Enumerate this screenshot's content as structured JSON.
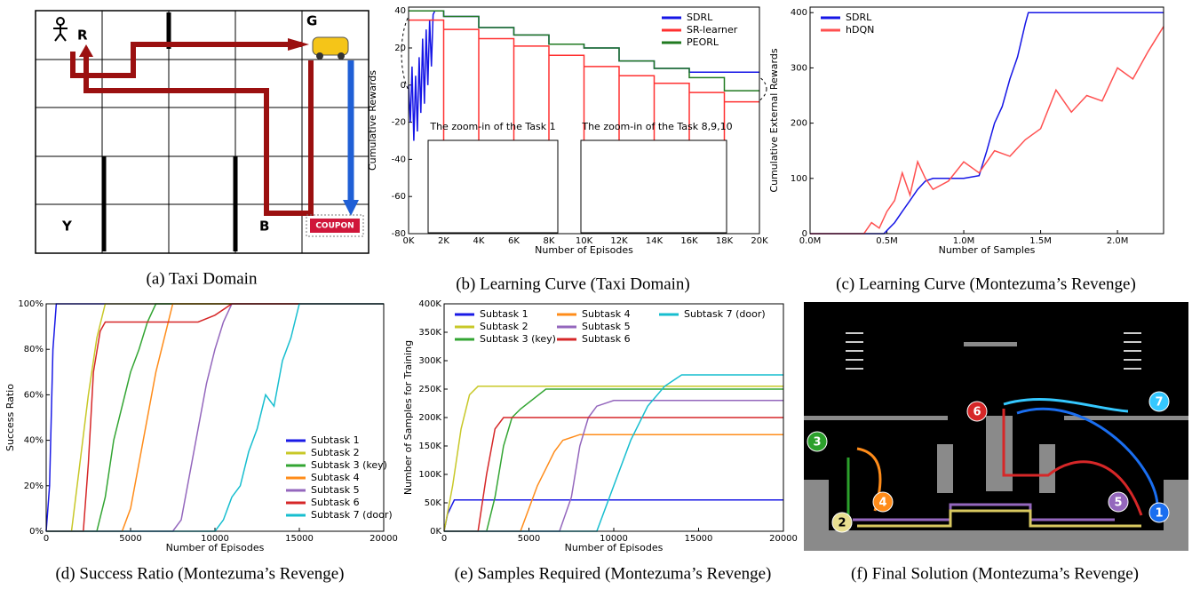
{
  "captions": [
    "(a) Taxi Domain",
    "(b) Learning Curve (Taxi Domain)",
    "(c) Learning Curve (Montezuma’s Revenge)",
    "(d) Success Ratio (Montezuma’s Revenge)",
    "(e) Samples Required (Montezuma’s Revenge)",
    "(f) Final Solution (Montezuma’s Revenge)"
  ],
  "taxi": {
    "labels": [
      "R",
      "G",
      "Y",
      "B",
      "COUPON"
    ]
  },
  "game": {
    "markers": [
      "1",
      "2",
      "3",
      "4",
      "5",
      "6",
      "7"
    ]
  },
  "chart_data": [
    {
      "type": "line",
      "xlabel": "Number of Episodes",
      "ylabel": "Cumulative Rewards",
      "legend": "upper right",
      "xlim": [
        0,
        20000
      ],
      "ylim": [
        -80,
        42
      ],
      "xticks": [
        {
          "value": 0,
          "label": "0K"
        },
        {
          "value": 2000,
          "label": "2K"
        },
        {
          "value": 4000,
          "label": "4K"
        },
        {
          "value": 6000,
          "label": "6K"
        },
        {
          "value": 8000,
          "label": "8K"
        },
        {
          "value": 10000,
          "label": "10K"
        },
        {
          "value": 12000,
          "label": "12K"
        },
        {
          "value": 14000,
          "label": "14K"
        },
        {
          "value": 16000,
          "label": "16K"
        },
        {
          "value": 18000,
          "label": "18K"
        },
        {
          "value": 20000,
          "label": "20K"
        }
      ],
      "yticks": [
        -80,
        -60,
        -40,
        -20,
        0,
        20,
        40
      ],
      "annotations": [
        "The zoom-in of the Task 1",
        "The zoom-in of the Task 8,9,10"
      ],
      "series": [
        {
          "name": "SDRL",
          "color": "#1515e6",
          "x": [
            0,
            100,
            200,
            300,
            400,
            500,
            600,
            700,
            800,
            900,
            1000,
            1100,
            1200,
            1300,
            1400,
            1500,
            1600,
            2000,
            2000,
            4000,
            4000,
            6000,
            6000,
            8000,
            8000,
            10000,
            10000,
            12000,
            12000,
            14000,
            14000,
            16000,
            16000,
            20000
          ],
          "values": [
            0,
            -20,
            10,
            -30,
            5,
            -25,
            15,
            -15,
            25,
            -10,
            30,
            0,
            35,
            10,
            38,
            40,
            40,
            40,
            37,
            37,
            31,
            31,
            27,
            27,
            22,
            22,
            20,
            20,
            13,
            13,
            9,
            9,
            7,
            7
          ]
        },
        {
          "name": "SR-learner",
          "color": "#ff3030",
          "x": [
            0,
            2000,
            2000,
            2000,
            4000,
            4000,
            4000,
            6000,
            6000,
            6000,
            8000,
            8000,
            8000,
            10000,
            10000,
            10000,
            12000,
            12000,
            12000,
            14000,
            14000,
            14000,
            16000,
            16000,
            16000,
            18000,
            18000,
            18000,
            20000
          ],
          "values": [
            35,
            35,
            -80,
            30,
            30,
            -80,
            25,
            25,
            -80,
            21,
            21,
            -80,
            16,
            16,
            -80,
            10,
            10,
            -80,
            5,
            5,
            -80,
            1,
            1,
            -80,
            -4,
            -4,
            -80,
            -9,
            -9
          ]
        },
        {
          "name": "PEORL",
          "color": "#207a20",
          "x": [
            0,
            2000,
            2000,
            4000,
            4000,
            6000,
            6000,
            8000,
            8000,
            10000,
            10000,
            12000,
            12000,
            14000,
            14000,
            16000,
            16000,
            18000,
            18000,
            20000
          ],
          "values": [
            40,
            40,
            37,
            37,
            31,
            31,
            27,
            27,
            22,
            22,
            20,
            20,
            13,
            13,
            9,
            9,
            4,
            4,
            -3,
            -3
          ]
        }
      ]
    },
    {
      "type": "line",
      "xlabel": "Number of Samples",
      "ylabel": "Cumulative External Rewards",
      "legend": "upper left",
      "xlim": [
        0,
        2300000
      ],
      "ylim": [
        0,
        410
      ],
      "xticks": [
        {
          "value": 0,
          "label": "0.0M"
        },
        {
          "value": 500000,
          "label": "0.5M"
        },
        {
          "value": 1000000,
          "label": "1.0M"
        },
        {
          "value": 1500000,
          "label": "1.5M"
        },
        {
          "value": 2000000,
          "label": "2.0M"
        }
      ],
      "yticks": [
        0,
        100,
        200,
        300,
        400
      ],
      "series": [
        {
          "name": "SDRL",
          "color": "#1515e6",
          "x": [
            0,
            480000,
            550000,
            600000,
            650000,
            700000,
            750000,
            800000,
            900000,
            1000000,
            1100000,
            1150000,
            1200000,
            1250000,
            1300000,
            1350000,
            1400000,
            1420000,
            2300000
          ],
          "values": [
            0,
            0,
            20,
            40,
            60,
            80,
            95,
            100,
            100,
            100,
            105,
            150,
            200,
            230,
            280,
            320,
            380,
            400,
            400
          ]
        },
        {
          "name": "hDQN",
          "color": "#ff5050",
          "x": [
            0,
            350000,
            400000,
            450000,
            500000,
            550000,
            600000,
            650000,
            700000,
            750000,
            800000,
            900000,
            1000000,
            1100000,
            1200000,
            1300000,
            1400000,
            1500000,
            1600000,
            1700000,
            1800000,
            1900000,
            2000000,
            2100000,
            2200000,
            2300000
          ],
          "values": [
            0,
            0,
            20,
            10,
            40,
            60,
            110,
            70,
            130,
            100,
            80,
            95,
            130,
            110,
            150,
            140,
            170,
            190,
            260,
            220,
            250,
            240,
            300,
            280,
            330,
            375
          ]
        }
      ]
    },
    {
      "type": "line",
      "xlabel": "Number of Episodes",
      "ylabel": "Success Ratio",
      "legend": "lower right",
      "xlim": [
        0,
        20000
      ],
      "ylim": [
        0,
        100
      ],
      "xticks": [
        0,
        5000,
        10000,
        15000,
        20000
      ],
      "yticks": [
        {
          "value": 0,
          "label": "0%"
        },
        {
          "value": 20,
          "label": "20%"
        },
        {
          "value": 40,
          "label": "40%"
        },
        {
          "value": 60,
          "label": "60%"
        },
        {
          "value": 80,
          "label": "80%"
        },
        {
          "value": 100,
          "label": "100%"
        }
      ],
      "series": [
        {
          "name": "Subtask 1",
          "color": "#1a1ae6",
          "x": [
            0,
            200,
            400,
            600,
            20000
          ],
          "values": [
            0,
            20,
            80,
            100,
            100
          ]
        },
        {
          "name": "Subtask 2",
          "color": "#c8c828",
          "x": [
            0,
            1500,
            2000,
            2500,
            3000,
            3500,
            20000
          ],
          "values": [
            0,
            0,
            30,
            60,
            85,
            100,
            100
          ]
        },
        {
          "name": "Subtask 3 (key)",
          "color": "#33a533",
          "x": [
            0,
            3000,
            3500,
            4000,
            4500,
            5000,
            5500,
            6000,
            6500,
            20000
          ],
          "values": [
            0,
            0,
            15,
            40,
            55,
            70,
            80,
            92,
            100,
            100
          ]
        },
        {
          "name": "Subtask 4",
          "color": "#ff8c1a",
          "x": [
            0,
            4500,
            5000,
            5500,
            6000,
            6500,
            7000,
            7500,
            20000
          ],
          "values": [
            0,
            0,
            10,
            30,
            50,
            70,
            85,
            100,
            100
          ]
        },
        {
          "name": "Subtask 5",
          "color": "#9467bd",
          "x": [
            0,
            7500,
            8000,
            8500,
            9000,
            9500,
            10000,
            10500,
            11000,
            20000
          ],
          "values": [
            0,
            0,
            5,
            25,
            45,
            65,
            80,
            92,
            100,
            100
          ]
        },
        {
          "name": "Subtask 6",
          "color": "#d62728",
          "x": [
            0,
            2200,
            2500,
            2800,
            3200,
            3500,
            9000,
            10000,
            11000,
            20000
          ],
          "values": [
            0,
            0,
            30,
            70,
            88,
            92,
            92,
            95,
            100,
            100
          ]
        },
        {
          "name": "Subtask 7 (door)",
          "color": "#17becf",
          "x": [
            0,
            10000,
            10500,
            11000,
            11500,
            12000,
            12500,
            13000,
            13500,
            14000,
            14500,
            15000,
            20000
          ],
          "values": [
            0,
            0,
            5,
            15,
            20,
            35,
            45,
            60,
            55,
            75,
            85,
            100,
            100
          ]
        }
      ]
    },
    {
      "type": "line",
      "xlabel": "Number of Episodes",
      "ylabel": "Number of Samples for Training",
      "legend": "upper left",
      "legend_columns": 3,
      "xlim": [
        0,
        20000
      ],
      "ylim": [
        0,
        400000
      ],
      "xticks": [
        0,
        5000,
        10000,
        15000,
        20000
      ],
      "yticks": [
        {
          "value": 0,
          "label": "0K"
        },
        {
          "value": 50000,
          "label": "50K"
        },
        {
          "value": 100000,
          "label": "100K"
        },
        {
          "value": 150000,
          "label": "150K"
        },
        {
          "value": 200000,
          "label": "200K"
        },
        {
          "value": 250000,
          "label": "250K"
        },
        {
          "value": 300000,
          "label": "300K"
        },
        {
          "value": 350000,
          "label": "350K"
        },
        {
          "value": 400000,
          "label": "400K"
        }
      ],
      "series": [
        {
          "name": "Subtask 1",
          "color": "#1a1ae6",
          "x": [
            0,
            200,
            600,
            20000
          ],
          "values": [
            0,
            30000,
            55000,
            55000
          ]
        },
        {
          "name": "Subtask 2",
          "color": "#c8c828",
          "x": [
            0,
            500,
            1000,
            1500,
            2000,
            20000
          ],
          "values": [
            0,
            80000,
            180000,
            240000,
            255000,
            255000
          ]
        },
        {
          "name": "Subtask 3 (key)",
          "color": "#33a533",
          "x": [
            0,
            2500,
            3000,
            3500,
            4000,
            4500,
            6000,
            20000
          ],
          "values": [
            0,
            0,
            60000,
            150000,
            200000,
            215000,
            250000,
            250000
          ]
        },
        {
          "name": "Subtask 4",
          "color": "#ff8c1a",
          "x": [
            0,
            4500,
            5000,
            5500,
            6000,
            6500,
            7000,
            8000,
            20000
          ],
          "values": [
            0,
            0,
            40000,
            80000,
            110000,
            140000,
            160000,
            170000,
            170000
          ]
        },
        {
          "name": "Subtask 5",
          "color": "#9467bd",
          "x": [
            0,
            6800,
            7500,
            8000,
            8500,
            9000,
            10000,
            20000
          ],
          "values": [
            0,
            0,
            60000,
            150000,
            200000,
            220000,
            230000,
            230000
          ]
        },
        {
          "name": "Subtask 6",
          "color": "#d62728",
          "x": [
            0,
            2000,
            2500,
            3000,
            3500,
            20000
          ],
          "values": [
            0,
            0,
            100000,
            180000,
            200000,
            200000
          ]
        },
        {
          "name": "Subtask 7 (door)",
          "color": "#17becf",
          "x": [
            0,
            9000,
            10000,
            11000,
            12000,
            13000,
            14000,
            20000
          ],
          "values": [
            0,
            0,
            80000,
            160000,
            220000,
            255000,
            275000,
            275000
          ]
        }
      ]
    }
  ]
}
